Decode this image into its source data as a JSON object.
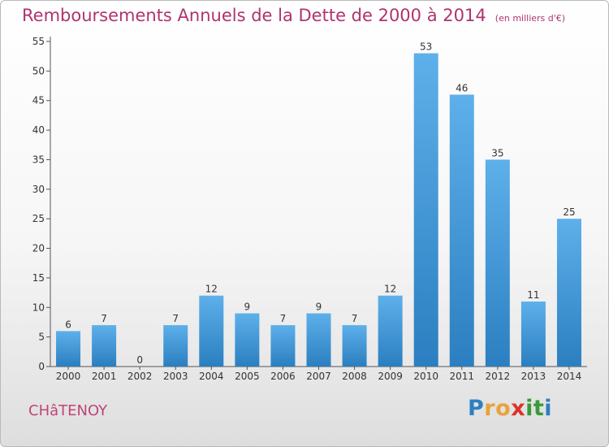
{
  "header": {
    "title": "Remboursements Annuels de la Dette de 2000 à 2014",
    "unit": "(en milliers d'€)"
  },
  "footer": {
    "town": "CHâTENOY",
    "logo_letters": [
      "P",
      "r",
      "o",
      "x",
      "i",
      "t",
      "i"
    ],
    "logo_colors": [
      "#2f7fc1",
      "#e9a23b",
      "#e9a23b",
      "#d9342b",
      "#3a9a3a",
      "#3a9a3a",
      "#2f7fc1"
    ]
  },
  "colors": {
    "bar_light": "#5eb0ea",
    "bar_dark": "#2b7fc0",
    "title": "#b0336e",
    "axis": "#555555"
  },
  "chart_data": {
    "type": "bar",
    "categories": [
      "2000",
      "2001",
      "2002",
      "2003",
      "2004",
      "2005",
      "2006",
      "2007",
      "2008",
      "2009",
      "2010",
      "2011",
      "2012",
      "2013",
      "2014"
    ],
    "values": [
      6,
      7,
      0,
      7,
      12,
      9,
      7,
      9,
      7,
      12,
      53,
      46,
      35,
      11,
      25
    ],
    "title": "Remboursements Annuels de la Dette de 2000 à 2014",
    "xlabel": "",
    "ylabel": "",
    "ylim": [
      0,
      55
    ],
    "yticks": [
      0,
      5,
      10,
      15,
      20,
      25,
      30,
      35,
      40,
      45,
      50,
      55
    ],
    "grid": false,
    "data_labels": true
  }
}
